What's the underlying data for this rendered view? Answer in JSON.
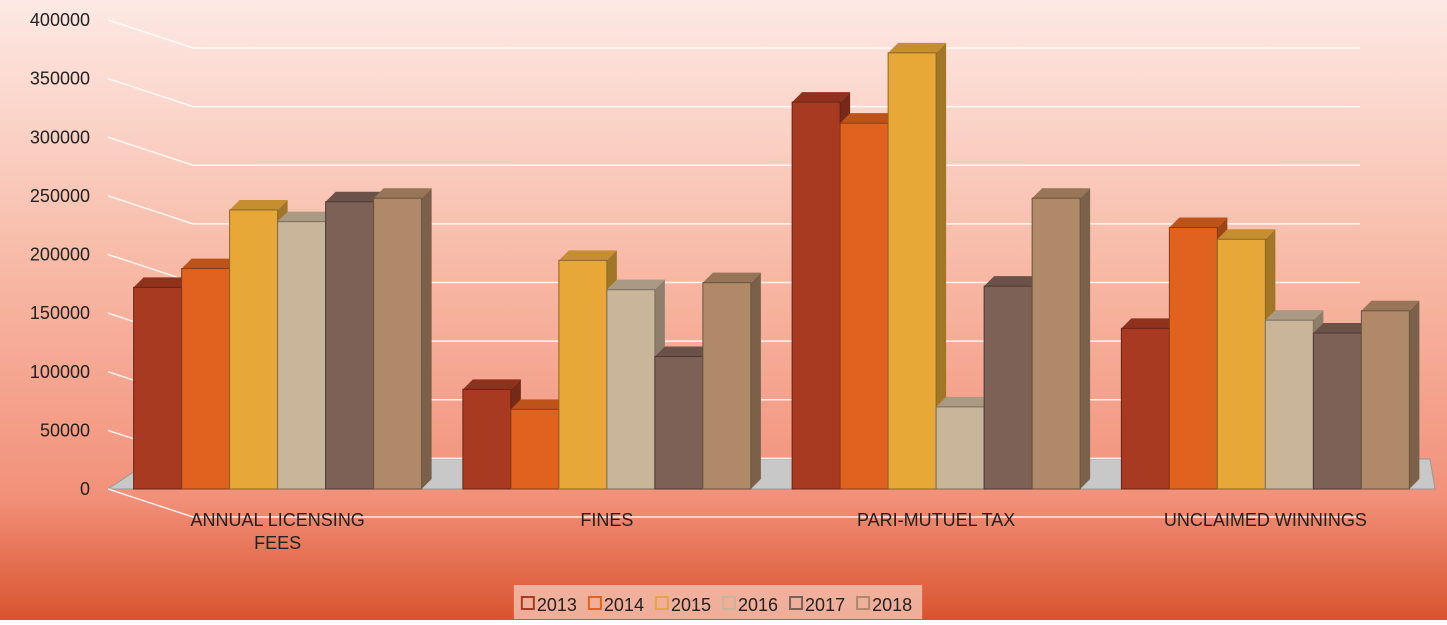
{
  "chart_data": {
    "type": "bar",
    "categories": [
      "ANNUAL LICENSING FEES",
      "FINES",
      "PARI-MUTUEL TAX",
      "UNCLAIMED WINNINGS"
    ],
    "series": [
      {
        "name": "2013",
        "color": "#a93a22",
        "values": [
          172000,
          85000,
          330000,
          137000
        ]
      },
      {
        "name": "2014",
        "color": "#e0621e",
        "values": [
          188000,
          68000,
          312000,
          223000
        ]
      },
      {
        "name": "2015",
        "color": "#e8a838",
        "values": [
          238000,
          195000,
          372000,
          213000
        ]
      },
      {
        "name": "2016",
        "color": "#c9b59a",
        "values": [
          228000,
          170000,
          70000,
          144000
        ]
      },
      {
        "name": "2017",
        "color": "#7d6056",
        "values": [
          245000,
          113000,
          173000,
          133000
        ]
      },
      {
        "name": "2018",
        "color": "#b08a68",
        "values": [
          248000,
          176000,
          248000,
          152000
        ]
      }
    ],
    "ylim": [
      0,
      400000
    ],
    "yticks": [
      0,
      50000,
      100000,
      150000,
      200000,
      250000,
      300000,
      350000,
      400000
    ],
    "grid": true
  }
}
